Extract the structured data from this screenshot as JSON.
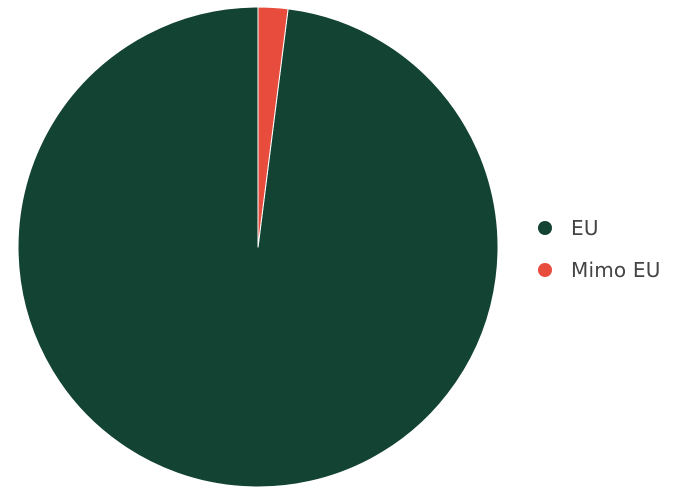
{
  "chart_data": {
    "type": "pie",
    "title": "",
    "categories": [
      "EU",
      "Mimo EU"
    ],
    "values": [
      98,
      2
    ],
    "colors": [
      "#134333",
      "#e84c3d"
    ],
    "legend_position": "right",
    "start_angle_deg": 0,
    "direction": "counterclockwise"
  }
}
